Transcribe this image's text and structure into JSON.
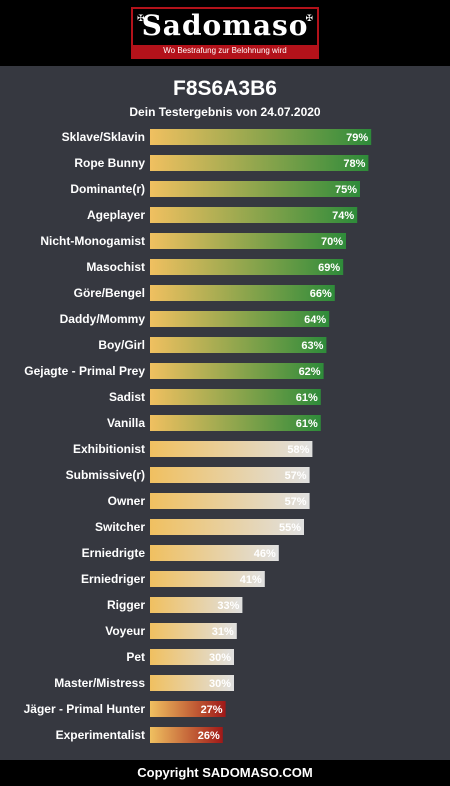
{
  "header": {
    "logo_text": "Sadomaso",
    "logo_tagline": "Wo Bestrafung zur Belohnung wird"
  },
  "title": "F8S6A3B6",
  "subtitle": "Dein Testergebnis von 24.07.2020",
  "footer": "Copyright SADOMASO.COM",
  "colors": {
    "background": "#363840",
    "bar_start": "#f0c060",
    "green_end": "#2e8b3a",
    "gray_end": "#e0e0e0",
    "red_end": "#a01818"
  },
  "chart_data": {
    "type": "bar",
    "orientation": "horizontal",
    "xlim": [
      0,
      100
    ],
    "unit": "%",
    "categories": [
      "Sklave/Sklavin",
      "Rope Bunny",
      "Dominante(r)",
      "Ageplayer",
      "Nicht-Monogamist",
      "Masochist",
      "Göre/Bengel",
      "Daddy/Mommy",
      "Boy/Girl",
      "Gejagte - Primal Prey",
      "Sadist",
      "Vanilla",
      "Exhibitionist",
      "Submissive(r)",
      "Owner",
      "Switcher",
      "Erniedrigte",
      "Erniedriger",
      "Rigger",
      "Voyeur",
      "Pet",
      "Master/Mistress",
      "Jäger - Primal Hunter",
      "Experimentalist"
    ],
    "values": [
      79,
      78,
      75,
      74,
      70,
      69,
      66,
      64,
      63,
      62,
      61,
      61,
      58,
      57,
      57,
      55,
      46,
      41,
      33,
      31,
      30,
      30,
      27,
      26
    ],
    "labels": [
      "79%",
      "78%",
      "75%",
      "74%",
      "70%",
      "69%",
      "66%",
      "64%",
      "63%",
      "62%",
      "61%",
      "61%",
      "58%",
      "57%",
      "57%",
      "55%",
      "46%",
      "41%",
      "33%",
      "31%",
      "30%",
      "30%",
      "27%",
      "26%"
    ],
    "value_color_group": [
      "green",
      "green",
      "green",
      "green",
      "green",
      "green",
      "green",
      "green",
      "green",
      "green",
      "green",
      "green",
      "gray",
      "gray",
      "gray",
      "gray",
      "gray",
      "gray",
      "gray",
      "gray",
      "gray",
      "gray",
      "red",
      "red"
    ]
  }
}
